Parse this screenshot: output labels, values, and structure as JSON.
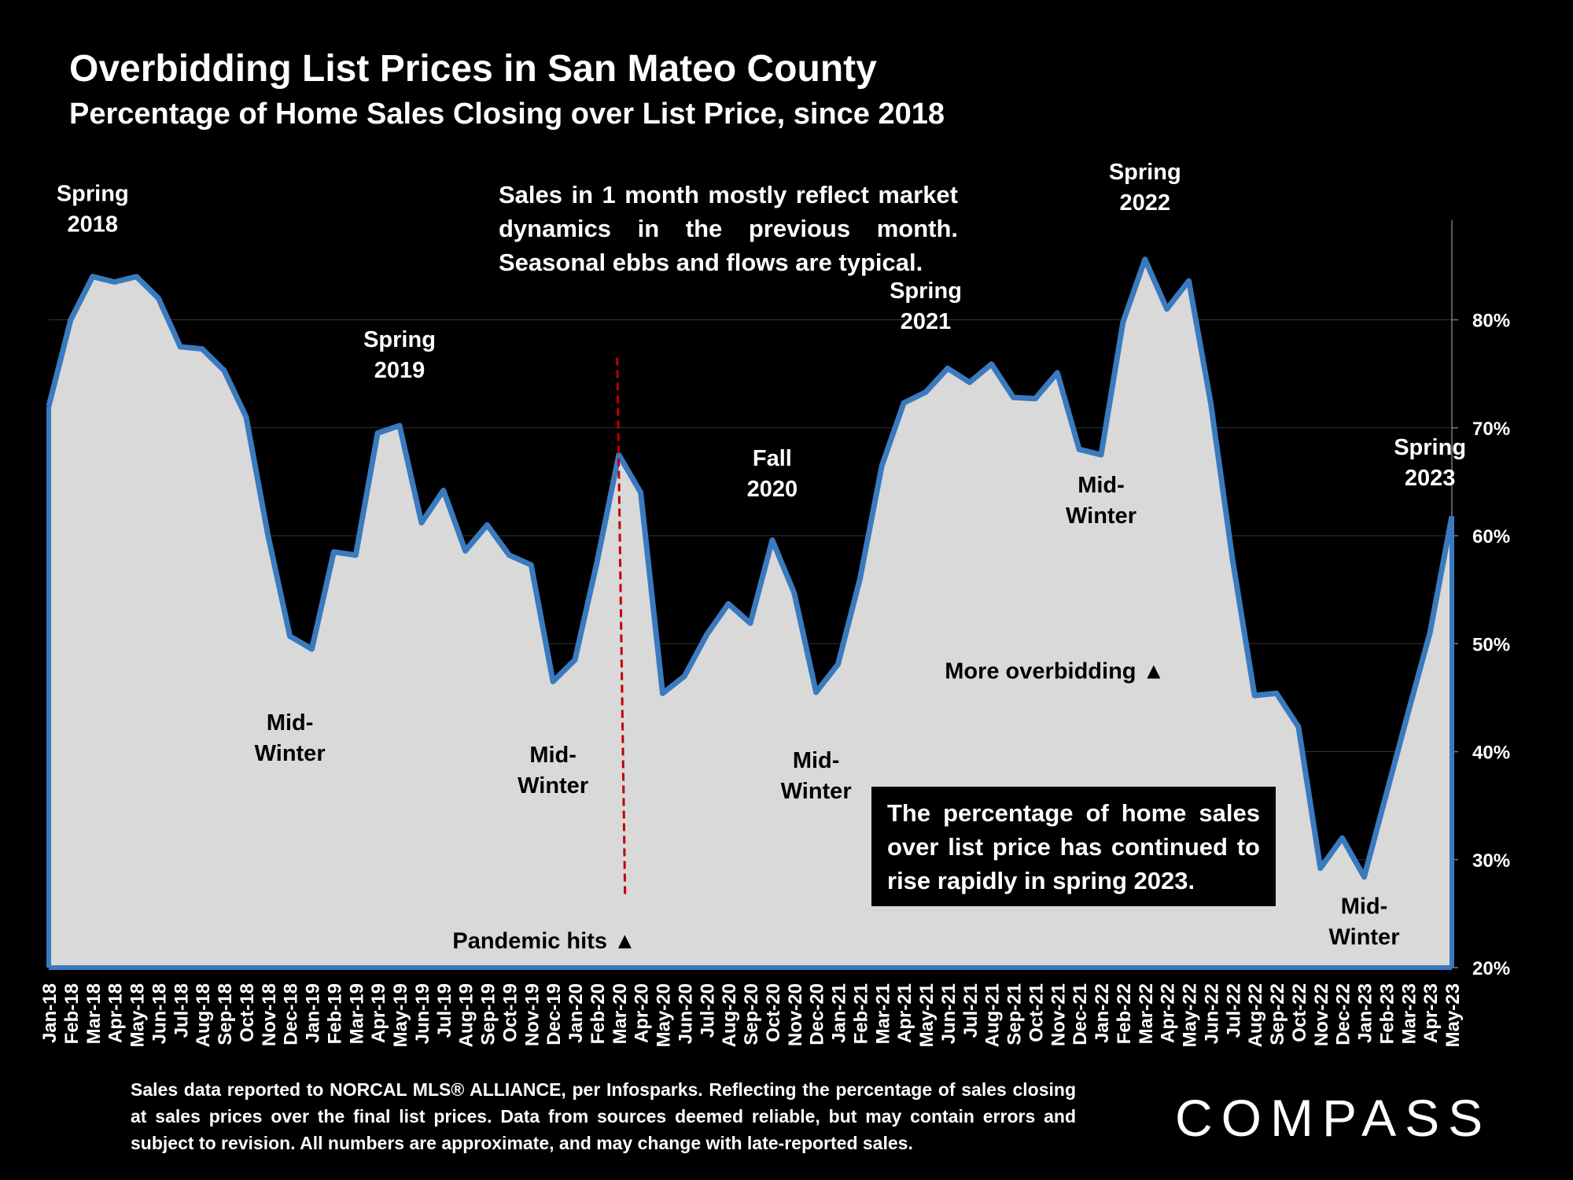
{
  "chart_data": {
    "type": "area",
    "title": "Overbidding List Prices in San Mateo County",
    "subtitle": "Percentage of Home Sales Closing over List Price, since 2018",
    "x": [
      "Jan-18",
      "Feb-18",
      "Mar-18",
      "Apr-18",
      "May-18",
      "Jun-18",
      "Jul-18",
      "Aug-18",
      "Sep-18",
      "Oct-18",
      "Nov-18",
      "Dec-18",
      "Jan-19",
      "Feb-19",
      "Mar-19",
      "Apr-19",
      "May-19",
      "Jun-19",
      "Jul-19",
      "Aug-19",
      "Sep-19",
      "Oct-19",
      "Nov-19",
      "Dec-19",
      "Jan-20",
      "Feb-20",
      "Mar-20",
      "Apr-20",
      "May-20",
      "Jun-20",
      "Jul-20",
      "Aug-20",
      "Sep-20",
      "Oct-20",
      "Nov-20",
      "Dec-20",
      "Jan-21",
      "Feb-21",
      "Mar-21",
      "Apr-21",
      "May-21",
      "Jun-21",
      "Jul-21",
      "Aug-21",
      "Sep-21",
      "Oct-21",
      "Nov-21",
      "Dec-21",
      "Jan-22",
      "Feb-22",
      "Mar-22",
      "Apr-22",
      "May-22",
      "Jun-22",
      "Jul-22",
      "Aug-22",
      "Sep-22",
      "Oct-22",
      "Nov-22",
      "Dec-22",
      "Jan-23",
      "Feb-23",
      "Mar-23",
      "Apr-23",
      "May-23"
    ],
    "values": [
      72,
      80,
      84,
      83.5,
      84,
      82,
      77.5,
      77.3,
      75.3,
      71,
      60,
      50.7,
      49.5,
      58.5,
      58.2,
      69.5,
      70.2,
      61.2,
      64.2,
      58.6,
      61,
      58.2,
      57.3,
      46.5,
      48.5,
      57.5,
      67.5,
      64,
      45.4,
      47,
      50.8,
      53.7,
      51.9,
      59.6,
      54.7,
      45.5,
      48.1,
      56,
      66.5,
      72.3,
      73.3,
      75.5,
      74.2,
      75.9,
      72.8,
      72.7,
      75.1,
      68,
      67.5,
      79.8,
      85.6,
      81,
      83.6,
      72.3,
      57.7,
      45.2,
      45.4,
      42.3,
      29.2,
      32,
      28.4,
      36,
      43.6,
      51,
      61.8
    ],
    "ylim": [
      20,
      89
    ],
    "yticks": [
      20,
      30,
      40,
      50,
      60,
      70,
      80
    ],
    "ytick_labels": [
      "20%",
      "30%",
      "40%",
      "50%",
      "60%",
      "70%",
      "80%"
    ],
    "y_axis_side": "right",
    "grid": true,
    "colors": {
      "line": "#3a7abf",
      "fill": "#d9d9d9",
      "background": "#000000",
      "pandemic_marker": "#c00000"
    },
    "annotations": [
      {
        "lines": [
          "Spring",
          "2018"
        ],
        "x": "Mar-18",
        "y": 91
      },
      {
        "lines": [
          "Mid-",
          "Winter"
        ],
        "x": "Dec-18",
        "y": 42
      },
      {
        "lines": [
          "Spring",
          "2019"
        ],
        "x": "May-19",
        "y": 77.5
      },
      {
        "lines": [
          "Mid-",
          "Winter"
        ],
        "x": "Dec-19",
        "y": 39
      },
      {
        "lines": [
          "Fall",
          "2020"
        ],
        "x": "Oct-20",
        "y": 66.5
      },
      {
        "lines": [
          "Mid-",
          "Winter"
        ],
        "x": "Dec-20",
        "y": 38.5
      },
      {
        "lines": [
          "Spring",
          "2021"
        ],
        "x": "May-21",
        "y": 82
      },
      {
        "lines": [
          "Mid-",
          "Winter"
        ],
        "x": "Jan-22",
        "y": 64
      },
      {
        "lines": [
          "Spring",
          "2022"
        ],
        "x": "Mar-22",
        "y": 93
      },
      {
        "lines": [
          "Spring",
          "2023"
        ],
        "x": "Apr-23",
        "y": 67.5
      },
      {
        "lines": [
          "Mid-",
          "Winter"
        ],
        "x": "Jan-23",
        "y": 25
      }
    ],
    "pandemic": {
      "label": "Pandemic hits ▲",
      "x": "Mar-20",
      "y_top": 76.5,
      "y_bottom": 26.5,
      "label_y": 22.5
    },
    "more_overbidding": {
      "label": "More overbidding ▲",
      "x": "Nov-21",
      "y": 47.5
    }
  },
  "notes": {
    "top": "Sales in 1 month mostly reflect market dynamics in the previous month. Seasonal ebbs and flows are typical.",
    "callout": "The percentage of home sales over list price has continued to rise rapidly in spring 2023.",
    "footnote": "Sales data reported to NORCAL MLS® ALLIANCE, per Infosparks. Reflecting the percentage of sales closing at sales prices over the final list prices. Data from sources deemed reliable, but may contain errors and subject to revision. All numbers are approximate, and may change with late-reported sales."
  },
  "logo": {
    "text": "COMPASS"
  }
}
